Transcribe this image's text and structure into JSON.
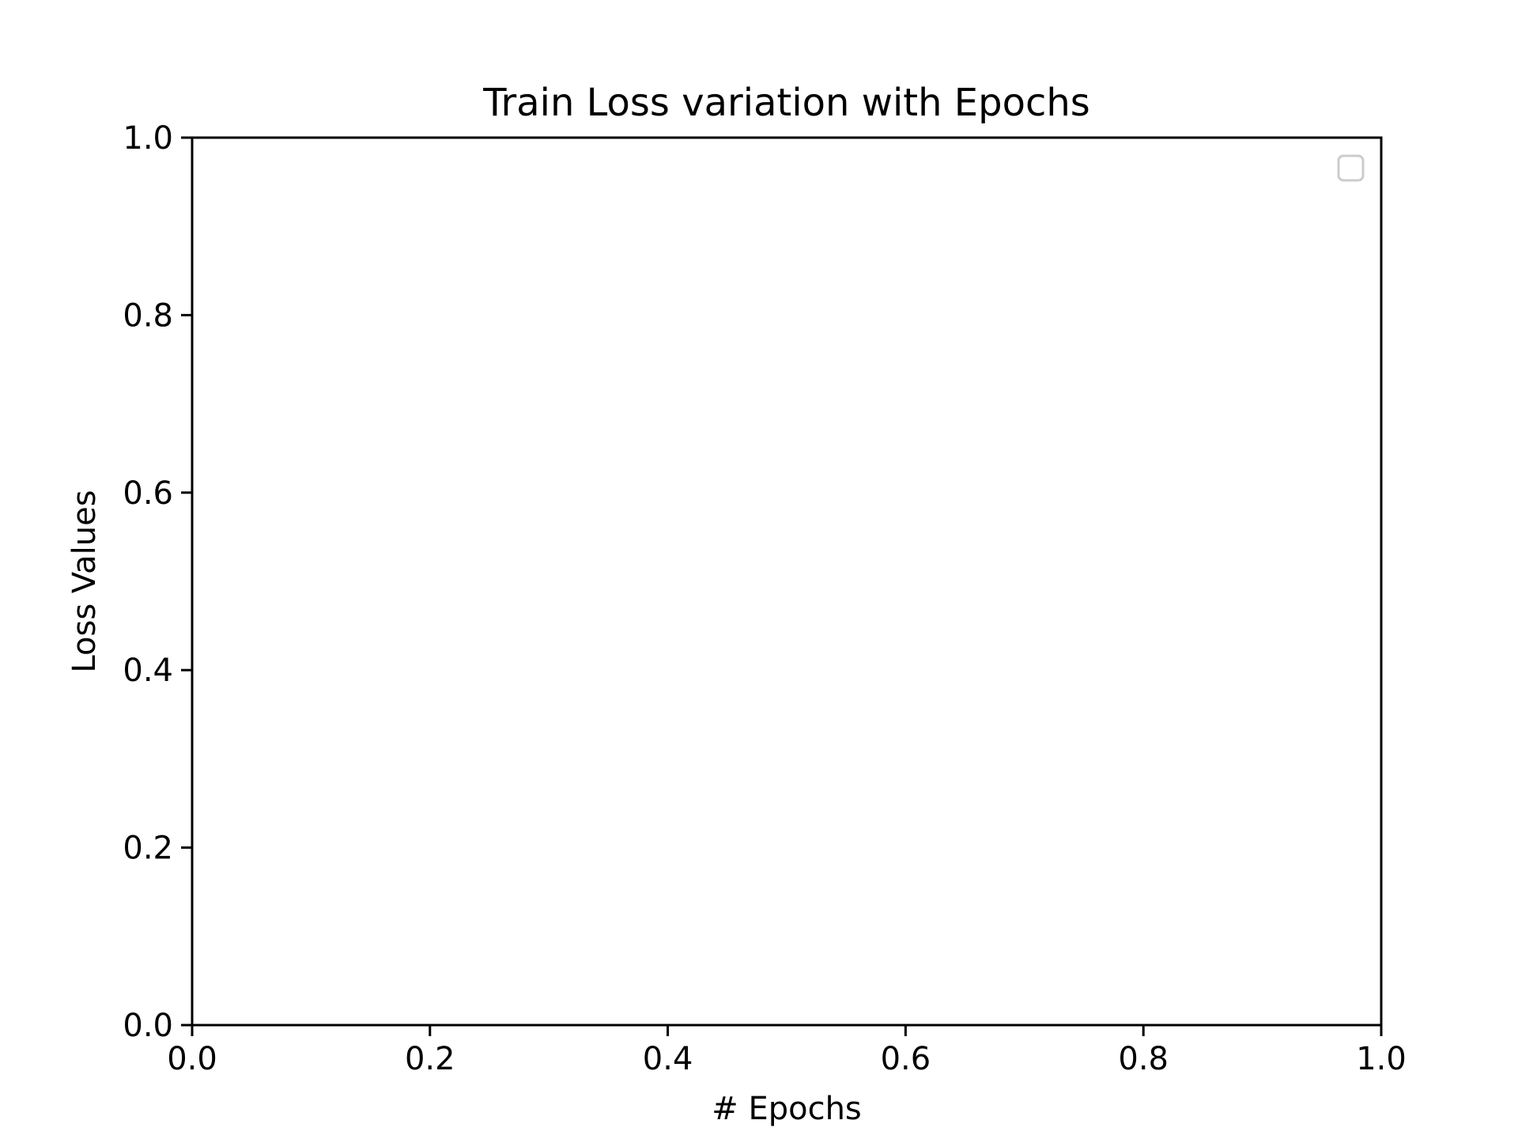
{
  "chart_data": {
    "type": "line",
    "title": "Train Loss variation with Epochs",
    "xlabel": "# Epochs",
    "ylabel": "Loss Values",
    "xlim": [
      0.0,
      1.0
    ],
    "ylim": [
      0.0,
      1.0
    ],
    "x_ticks": [
      "0.0",
      "0.2",
      "0.4",
      "0.6",
      "0.8",
      "1.0"
    ],
    "y_ticks": [
      "0.0",
      "0.2",
      "0.4",
      "0.6",
      "0.8",
      "1.0"
    ],
    "series": [],
    "grid": false,
    "legend": "top-right",
    "legend_entries": []
  }
}
